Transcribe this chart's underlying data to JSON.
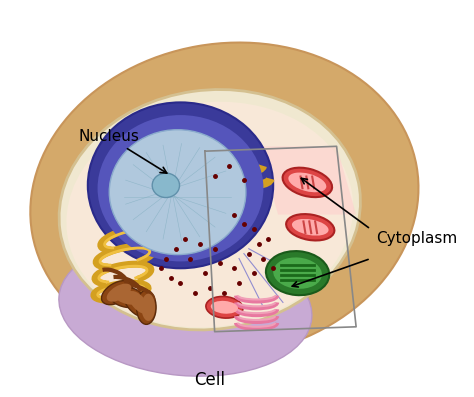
{
  "background_color": "#ffffff",
  "title": "",
  "labels": {
    "nucleus": "Nucleus",
    "cytoplasm": "Cytoplasm",
    "cell": "Cell"
  },
  "colors": {
    "outer_cell_fill": "#d4a96a",
    "outer_cell_edge": "#c8955a",
    "cytoplasm_fill": "#f5dfc5",
    "cytoplasm_edge": "#e0c4a0",
    "nucleus_outer": "#4a4aaa",
    "nucleus_inner": "#8888cc",
    "nucleus_core": "#c8d8e8",
    "nucleolus": "#7ab0cc",
    "er_color": "#d4a020",
    "mito_outer": "#cc3333",
    "mito_inner": "#dd6666",
    "chloroplast": "#3a8a3a",
    "golgi": "#f0a0b0",
    "purple_base": "#c0a0cc",
    "brown_org": "#8b4513",
    "inner_membrane": "#f0e8d0",
    "dot_color": "#660000",
    "line_color": "#000000",
    "label_color": "#000000"
  },
  "figsize": [
    4.74,
    3.97
  ],
  "dpi": 100
}
